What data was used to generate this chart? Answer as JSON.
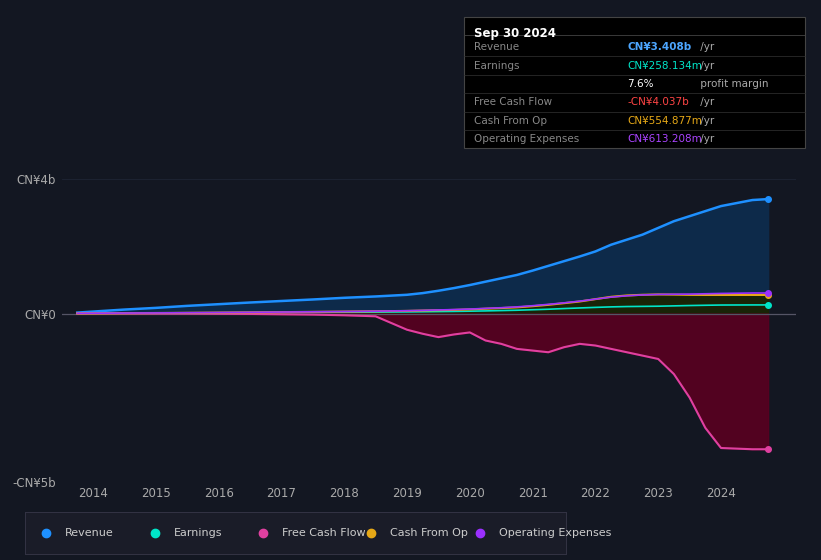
{
  "bg_color": "#131722",
  "plot_bg_color": "#0d1117",
  "title": "Sep 30 2024",
  "info_box_title": "Sep 30 2024",
  "info_rows": [
    {
      "label": "Revenue",
      "value": "CN¥3.408b",
      "unit": " /yr",
      "value_color": "#4da6ff",
      "label_color": "#888888"
    },
    {
      "label": "Earnings",
      "value": "CN¥258.134m",
      "unit": " /yr",
      "value_color": "#00e5c8",
      "label_color": "#888888"
    },
    {
      "label": "",
      "value": "7.6%",
      "unit": " profit margin",
      "value_color": "#ffffff",
      "label_color": "#888888"
    },
    {
      "label": "Free Cash Flow",
      "value": "-CN¥4.037b",
      "unit": " /yr",
      "value_color": "#ff4444",
      "label_color": "#888888"
    },
    {
      "label": "Cash From Op",
      "value": "CN¥554.877m",
      "unit": " /yr",
      "value_color": "#e6a817",
      "label_color": "#888888"
    },
    {
      "label": "Operating Expenses",
      "value": "CN¥613.208m",
      "unit": " /yr",
      "value_color": "#aa44ff",
      "label_color": "#888888"
    }
  ],
  "ylim": [
    -5000000000.0,
    4500000000.0
  ],
  "ytick_vals": [
    -5000000000.0,
    0.0,
    4000000000.0
  ],
  "ytick_labels": [
    "-CN¥5b",
    "CN¥0",
    "CN¥4b"
  ],
  "xlim": [
    2013.5,
    2025.2
  ],
  "xticks": [
    2014,
    2015,
    2016,
    2017,
    2018,
    2019,
    2020,
    2021,
    2022,
    2023,
    2024
  ],
  "grid_color": "#1e2535",
  "zero_line_color": "#555566",
  "revenue_color": "#1e90ff",
  "earnings_color": "#00e5c8",
  "fcf_color": "#e040a0",
  "cashop_color": "#e6a817",
  "opex_color": "#9b30ff",
  "revenue_fill": "#0d2a4a",
  "cashop_fill": "#1a2800",
  "opex_fill": "#1a0a30",
  "fcf_fill_neg": "#5a0020",
  "legend_items": [
    {
      "label": "Revenue",
      "color": "#1e90ff"
    },
    {
      "label": "Earnings",
      "color": "#00e5c8"
    },
    {
      "label": "Free Cash Flow",
      "color": "#e040a0"
    },
    {
      "label": "Cash From Op",
      "color": "#e6a817"
    },
    {
      "label": "Operating Expenses",
      "color": "#9b30ff"
    }
  ],
  "years": [
    2013.75,
    2014.0,
    2014.5,
    2015.0,
    2015.5,
    2016.0,
    2016.5,
    2017.0,
    2017.5,
    2018.0,
    2018.5,
    2019.0,
    2019.25,
    2019.5,
    2019.75,
    2020.0,
    2020.25,
    2020.5,
    2020.75,
    2021.0,
    2021.25,
    2021.5,
    2021.75,
    2022.0,
    2022.25,
    2022.5,
    2022.75,
    2023.0,
    2023.25,
    2023.5,
    2023.75,
    2024.0,
    2024.5,
    2024.75
  ],
  "revenue": [
    30000000.0,
    60000000.0,
    120000000.0,
    170000000.0,
    230000000.0,
    280000000.0,
    330000000.0,
    375000000.0,
    420000000.0,
    470000000.0,
    510000000.0,
    560000000.0,
    610000000.0,
    680000000.0,
    760000000.0,
    850000000.0,
    950000000.0,
    1050000000.0,
    1150000000.0,
    1280000000.0,
    1420000000.0,
    1560000000.0,
    1700000000.0,
    1850000000.0,
    2050000000.0,
    2200000000.0,
    2350000000.0,
    2550000000.0,
    2750000000.0,
    2900000000.0,
    3050000000.0,
    3200000000.0,
    3380000000.0,
    3408000000.0
  ],
  "earnings": [
    5000000.0,
    8000000.0,
    12000000.0,
    16000000.0,
    20000000.0,
    24000000.0,
    28000000.0,
    32000000.0,
    36000000.0,
    40000000.0,
    44000000.0,
    50000000.0,
    55000000.0,
    60000000.0,
    65000000.0,
    72000000.0,
    80000000.0,
    90000000.0,
    100000000.0,
    115000000.0,
    130000000.0,
    150000000.0,
    168000000.0,
    185000000.0,
    200000000.0,
    210000000.0,
    215000000.0,
    220000000.0,
    230000000.0,
    240000000.0,
    248000000.0,
    255000000.0,
    258000000.0,
    258134000.0
  ],
  "fcf": [
    2000000.0,
    3000000.0,
    2000000.0,
    1000000.0,
    0,
    -5000000.0,
    -10000000.0,
    -20000000.0,
    -30000000.0,
    -50000000.0,
    -80000000.0,
    -480000000.0,
    -600000000.0,
    -700000000.0,
    -620000000.0,
    -560000000.0,
    -800000000.0,
    -900000000.0,
    -1050000000.0,
    -1100000000.0,
    -1150000000.0,
    -1000000000.0,
    -900000000.0,
    -950000000.0,
    -1050000000.0,
    -1150000000.0,
    -1250000000.0,
    -1350000000.0,
    -1800000000.0,
    -2500000000.0,
    -3400000000.0,
    -4000000000.0,
    -4037000000.0,
    -4037000000.0
  ],
  "cashop": [
    5000000.0,
    8000000.0,
    14000000.0,
    18000000.0,
    24000000.0,
    30000000.0,
    36000000.0,
    44000000.0,
    52000000.0,
    60000000.0,
    70000000.0,
    80000000.0,
    90000000.0,
    100000000.0,
    110000000.0,
    125000000.0,
    145000000.0,
    165000000.0,
    185000000.0,
    220000000.0,
    260000000.0,
    310000000.0,
    360000000.0,
    430000000.0,
    500000000.0,
    540000000.0,
    560000000.0,
    570000000.0,
    565000000.0,
    558000000.0,
    555000000.0,
    555000000.0,
    554877000.0,
    554877000.0
  ],
  "opex": [
    8000000.0,
    12000000.0,
    16000000.0,
    20000000.0,
    26000000.0,
    32000000.0,
    38000000.0,
    46000000.0,
    54000000.0,
    62000000.0,
    72000000.0,
    85000000.0,
    95000000.0,
    108000000.0,
    120000000.0,
    135000000.0,
    155000000.0,
    175000000.0,
    200000000.0,
    235000000.0,
    275000000.0,
    320000000.0,
    370000000.0,
    430000000.0,
    490000000.0,
    530000000.0,
    555000000.0,
    570000000.0,
    575000000.0,
    580000000.0,
    590000000.0,
    600000000.0,
    613000000.0,
    613208000.0
  ]
}
